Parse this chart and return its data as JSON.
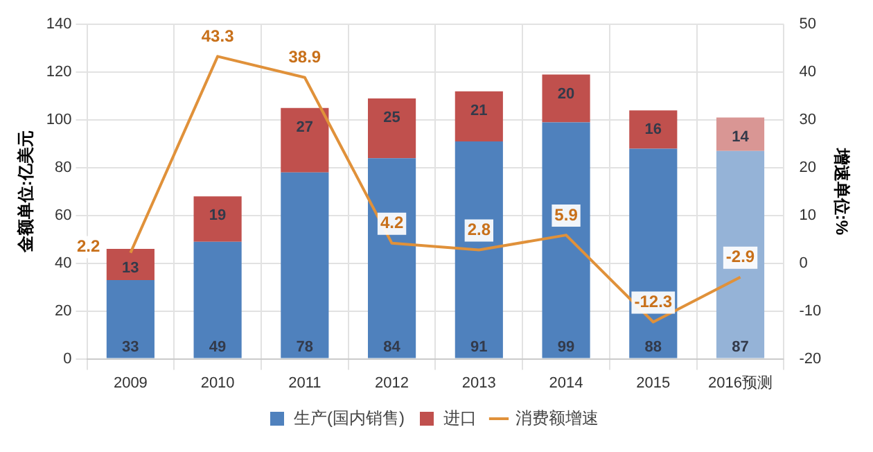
{
  "chart_data": {
    "type": "bar",
    "stacked": true,
    "categories": [
      "2009",
      "2010",
      "2011",
      "2012",
      "2013",
      "2014",
      "2015",
      "2016预测"
    ],
    "ylabel": "金额单位:亿美元",
    "y2label": "增速单位:%",
    "series": [
      {
        "name": "生产(国内销售)",
        "color": "#4f81bd",
        "colors": [
          "#4f81bd",
          "#4f81bd",
          "#4f81bd",
          "#4f81bd",
          "#4f81bd",
          "#4f81bd",
          "#4f81bd",
          "#95b3d7"
        ],
        "values": [
          33,
          49,
          78,
          84,
          91,
          99,
          88,
          87
        ]
      },
      {
        "name": "进口",
        "color": "#c0504d",
        "colors": [
          "#c0504d",
          "#c0504d",
          "#c0504d",
          "#c0504d",
          "#c0504d",
          "#c0504d",
          "#c0504d",
          "#d99694"
        ],
        "values": [
          13,
          19,
          27,
          25,
          21,
          20,
          16,
          14
        ]
      },
      {
        "name": "消费额增速",
        "type": "line",
        "axis": "y2",
        "color": "#e0913a",
        "values": [
          2.2,
          43.3,
          38.9,
          4.2,
          2.8,
          5.9,
          -12.3,
          -2.9
        ]
      }
    ],
    "ylim": [
      0,
      140
    ],
    "yticks": [
      0,
      20,
      40,
      60,
      80,
      100,
      120,
      140
    ],
    "y2lim": [
      -20,
      50
    ],
    "y2ticks": [
      -20,
      -10,
      0,
      10,
      20,
      30,
      40,
      50
    ],
    "grid": true,
    "legend": "bottom",
    "data_labels": true,
    "marker": "none"
  }
}
